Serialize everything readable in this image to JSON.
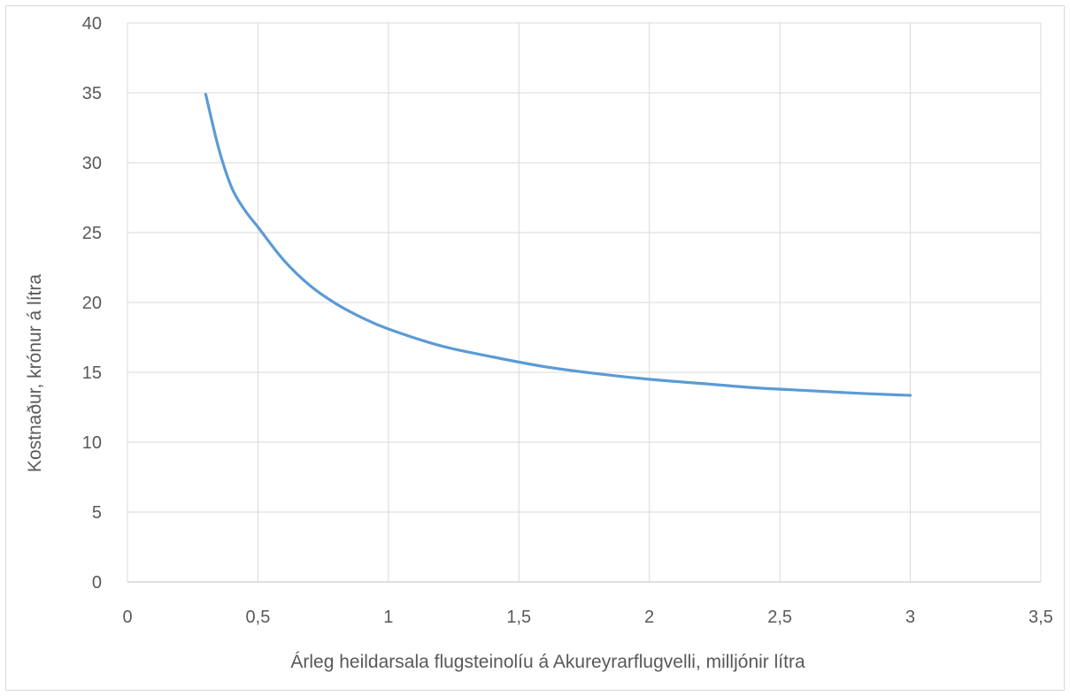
{
  "chart_data": {
    "type": "line",
    "title": "",
    "xlabel": "Árleg heildarsala flugsteinolíu á Akureyrarflugvelli, milljónir lítra",
    "ylabel": "Kostnaður, krónur á lítra",
    "xlim": [
      0,
      3.5
    ],
    "ylim": [
      0,
      40
    ],
    "x_ticks": [
      "0",
      "0,5",
      "1",
      "1,5",
      "2",
      "2,5",
      "3",
      "3,5"
    ],
    "y_ticks": [
      "0",
      "5",
      "10",
      "15",
      "20",
      "25",
      "30",
      "35",
      "40"
    ],
    "grid": true,
    "legend": "none",
    "series": [
      {
        "color": "#5b9bd5",
        "x": [
          0.3,
          0.35,
          0.4,
          0.45,
          0.5,
          0.6,
          0.7,
          0.8,
          0.9,
          1.0,
          1.2,
          1.4,
          1.6,
          1.8,
          2.0,
          2.2,
          2.4,
          2.6,
          2.8,
          3.0
        ],
        "y": [
          34.9,
          31.0,
          28.2,
          26.6,
          25.4,
          23.0,
          21.2,
          19.9,
          18.9,
          18.1,
          16.9,
          16.1,
          15.4,
          14.9,
          14.5,
          14.2,
          13.9,
          13.7,
          13.5,
          13.35
        ]
      }
    ]
  }
}
